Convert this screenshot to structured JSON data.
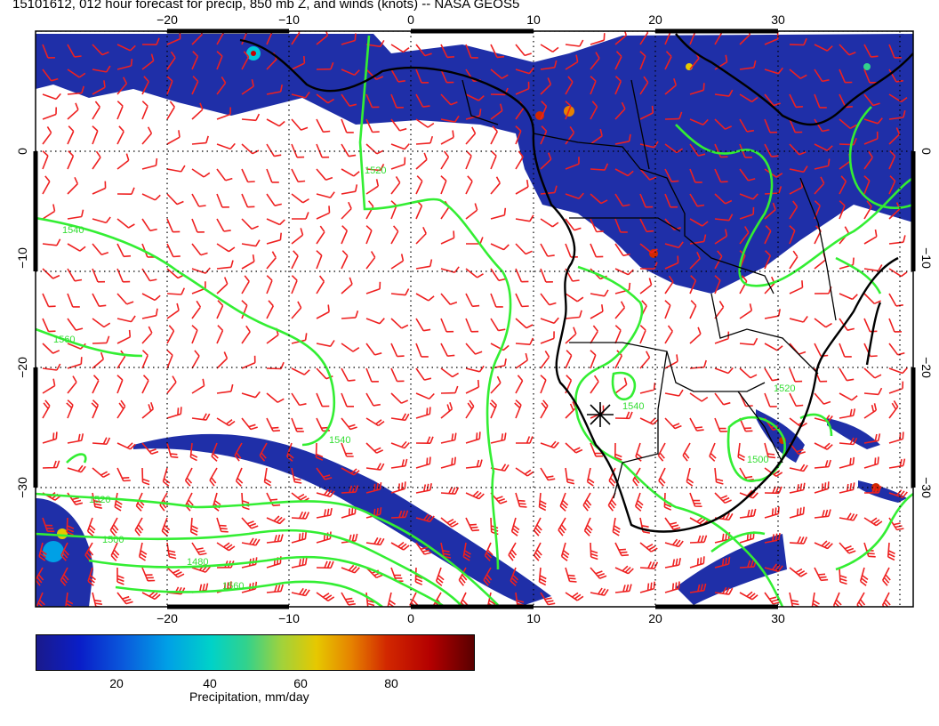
{
  "title": "15101612, 012 hour forecast for precip, 850 mb Z, and winds (knots) -- NASA GEOS5",
  "map": {
    "lon_ticks": [
      "−20",
      "−10",
      "0",
      "10",
      "20",
      "30"
    ],
    "lat_ticks": [
      "0",
      "−10",
      "−20",
      "−30"
    ],
    "contour_labels": [
      "1540",
      "1560",
      "1520",
      "1540",
      "1520",
      "1500",
      "1480",
      "1560",
      "1540",
      "1520",
      "1500"
    ],
    "colors": {
      "precip_base": "#1f2fa8",
      "contour": "#33ee33",
      "wind_barb": "#ee2020",
      "coast": "#000000"
    }
  },
  "colorbar": {
    "ticks": [
      "20",
      "40",
      "60",
      "80"
    ],
    "label": "Precipitation, mm/day"
  }
}
